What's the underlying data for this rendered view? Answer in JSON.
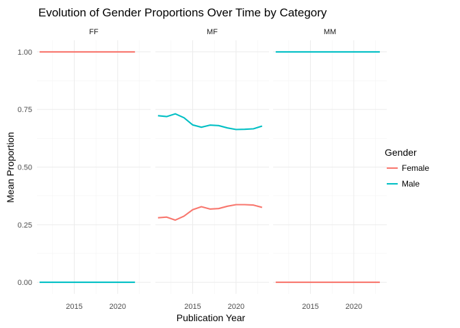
{
  "chart_data": {
    "type": "line",
    "title": "Evolution of Gender Proportions Over Time by Category",
    "xlabel": "Publication Year",
    "ylabel": "Mean Proportion",
    "xlim": [
      2010.7,
      2023.8
    ],
    "ylim": [
      -0.05,
      1.05
    ],
    "x_ticks": [
      2015,
      2020
    ],
    "y_ticks": [
      0,
      0.25,
      0.5,
      0.75,
      1.0
    ],
    "y_tick_labels": [
      "0.00",
      "0.25",
      "0.50",
      "0.75",
      "1.00"
    ],
    "grid": true,
    "legend": {
      "title": "Gender",
      "placement": "right",
      "entries": [
        {
          "label": "Female",
          "color": "#F8766D"
        },
        {
          "label": "Male",
          "color": "#00BFC4"
        }
      ]
    },
    "panels": [
      {
        "name": "FF",
        "series": [
          {
            "name": "Female",
            "color": "#F8766D",
            "x": [
              2011,
              2022
            ],
            "y": [
              1.0,
              1.0
            ]
          },
          {
            "name": "Male",
            "color": "#00BFC4",
            "x": [
              2011,
              2022
            ],
            "y": [
              0.0,
              0.0
            ]
          }
        ]
      },
      {
        "name": "MF",
        "series": [
          {
            "name": "Female",
            "color": "#F8766D",
            "x": [
              2011,
              2012,
              2013,
              2014,
              2015,
              2016,
              2017,
              2018,
              2019,
              2020,
              2021,
              2022,
              2023
            ],
            "y": [
              0.28,
              0.283,
              0.27,
              0.287,
              0.315,
              0.328,
              0.318,
              0.32,
              0.33,
              0.337,
              0.337,
              0.335,
              0.325
            ]
          },
          {
            "name": "Male",
            "color": "#00BFC4",
            "x": [
              2011,
              2012,
              2013,
              2014,
              2015,
              2016,
              2017,
              2018,
              2019,
              2020,
              2021,
              2022,
              2023
            ],
            "y": [
              0.723,
              0.719,
              0.731,
              0.714,
              0.683,
              0.673,
              0.682,
              0.68,
              0.67,
              0.663,
              0.664,
              0.666,
              0.678
            ]
          }
        ]
      },
      {
        "name": "MM",
        "series": [
          {
            "name": "Female",
            "color": "#F8766D",
            "x": [
              2011,
              2023
            ],
            "y": [
              0.0,
              0.0
            ]
          },
          {
            "name": "Male",
            "color": "#00BFC4",
            "x": [
              2011,
              2023
            ],
            "y": [
              1.0,
              1.0
            ]
          }
        ]
      }
    ]
  }
}
